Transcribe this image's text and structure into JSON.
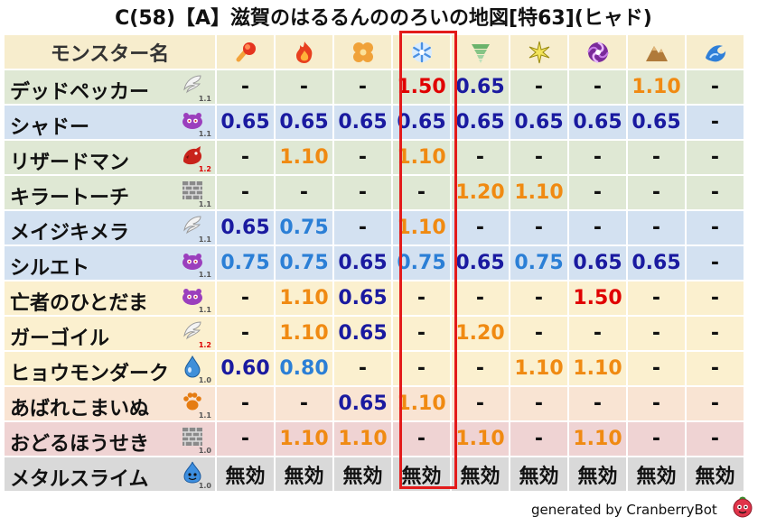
{
  "title": "C(58)【A】滋賀のはるるんののろいの地図[特63](ヒャド)",
  "header": {
    "name_label": "モンスター名",
    "elements": [
      {
        "icon": "fire-ball-icon"
      },
      {
        "icon": "flame-icon"
      },
      {
        "icon": "leaf-clover-icon"
      },
      {
        "icon": "ice-snowflake-icon"
      },
      {
        "icon": "tornado-icon"
      },
      {
        "icon": "lightning-spark-icon"
      },
      {
        "icon": "darkness-swirl-icon"
      },
      {
        "icon": "rock-mountain-icon"
      },
      {
        "icon": "water-wave-icon"
      }
    ]
  },
  "rows": [
    {
      "name": "デッドペッカー",
      "type_icon": "wing-icon",
      "level": "1.1",
      "level_color": "#555555",
      "bg": "green",
      "values": [
        {
          "v": "-",
          "c": "dash"
        },
        {
          "v": "-",
          "c": "dash"
        },
        {
          "v": "-",
          "c": "dash"
        },
        {
          "v": "1.50",
          "c": "red"
        },
        {
          "v": "0.65",
          "c": "blue"
        },
        {
          "v": "-",
          "c": "dash"
        },
        {
          "v": "-",
          "c": "dash"
        },
        {
          "v": "1.10",
          "c": "orange"
        },
        {
          "v": "-",
          "c": "dash"
        }
      ]
    },
    {
      "name": "シャドー",
      "type_icon": "slime-blob-icon",
      "level": "1.1",
      "level_color": "#555555",
      "bg": "blue",
      "values": [
        {
          "v": "0.65",
          "c": "blue"
        },
        {
          "v": "0.65",
          "c": "blue"
        },
        {
          "v": "0.65",
          "c": "blue"
        },
        {
          "v": "0.65",
          "c": "blue"
        },
        {
          "v": "0.65",
          "c": "blue"
        },
        {
          "v": "0.65",
          "c": "blue"
        },
        {
          "v": "0.65",
          "c": "blue"
        },
        {
          "v": "0.65",
          "c": "blue"
        },
        {
          "v": "-",
          "c": "dash"
        }
      ]
    },
    {
      "name": "リザードマン",
      "type_icon": "dragon-icon",
      "level": "1.2",
      "level_color": "#dd0000",
      "bg": "green",
      "values": [
        {
          "v": "-",
          "c": "dash"
        },
        {
          "v": "1.10",
          "c": "orange"
        },
        {
          "v": "-",
          "c": "dash"
        },
        {
          "v": "1.10",
          "c": "orange"
        },
        {
          "v": "-",
          "c": "dash"
        },
        {
          "v": "-",
          "c": "dash"
        },
        {
          "v": "-",
          "c": "dash"
        },
        {
          "v": "-",
          "c": "dash"
        },
        {
          "v": "-",
          "c": "dash"
        }
      ]
    },
    {
      "name": "キラートーチ",
      "type_icon": "brick-wall-icon",
      "level": "1.1",
      "level_color": "#555555",
      "bg": "green",
      "values": [
        {
          "v": "-",
          "c": "dash"
        },
        {
          "v": "-",
          "c": "dash"
        },
        {
          "v": "-",
          "c": "dash"
        },
        {
          "v": "-",
          "c": "dash"
        },
        {
          "v": "1.20",
          "c": "orange"
        },
        {
          "v": "1.10",
          "c": "orange"
        },
        {
          "v": "-",
          "c": "dash"
        },
        {
          "v": "-",
          "c": "dash"
        },
        {
          "v": "-",
          "c": "dash"
        }
      ]
    },
    {
      "name": "メイジキメラ",
      "type_icon": "wing-icon",
      "level": "1.1",
      "level_color": "#555555",
      "bg": "blue",
      "values": [
        {
          "v": "0.65",
          "c": "blue"
        },
        {
          "v": "0.75",
          "c": "lblue"
        },
        {
          "v": "-",
          "c": "dash"
        },
        {
          "v": "1.10",
          "c": "orange"
        },
        {
          "v": "-",
          "c": "dash"
        },
        {
          "v": "-",
          "c": "dash"
        },
        {
          "v": "-",
          "c": "dash"
        },
        {
          "v": "-",
          "c": "dash"
        },
        {
          "v": "-",
          "c": "dash"
        }
      ]
    },
    {
      "name": "シルエト",
      "type_icon": "slime-blob-icon",
      "level": "1.1",
      "level_color": "#555555",
      "bg": "blue",
      "values": [
        {
          "v": "0.75",
          "c": "lblue"
        },
        {
          "v": "0.75",
          "c": "lblue"
        },
        {
          "v": "0.65",
          "c": "blue"
        },
        {
          "v": "0.75",
          "c": "lblue"
        },
        {
          "v": "0.65",
          "c": "blue"
        },
        {
          "v": "0.75",
          "c": "lblue"
        },
        {
          "v": "0.65",
          "c": "blue"
        },
        {
          "v": "0.65",
          "c": "blue"
        },
        {
          "v": "-",
          "c": "dash"
        }
      ]
    },
    {
      "name": "亡者のひとだま",
      "type_icon": "slime-blob-icon",
      "level": "1.1",
      "level_color": "#555555",
      "bg": "yellow",
      "values": [
        {
          "v": "-",
          "c": "dash"
        },
        {
          "v": "1.10",
          "c": "orange"
        },
        {
          "v": "0.65",
          "c": "blue"
        },
        {
          "v": "-",
          "c": "dash"
        },
        {
          "v": "-",
          "c": "dash"
        },
        {
          "v": "-",
          "c": "dash"
        },
        {
          "v": "1.50",
          "c": "red"
        },
        {
          "v": "-",
          "c": "dash"
        },
        {
          "v": "-",
          "c": "dash"
        }
      ]
    },
    {
      "name": "ガーゴイル",
      "type_icon": "wing-icon",
      "level": "1.2",
      "level_color": "#dd0000",
      "bg": "yellow",
      "values": [
        {
          "v": "-",
          "c": "dash"
        },
        {
          "v": "1.10",
          "c": "orange"
        },
        {
          "v": "0.65",
          "c": "blue"
        },
        {
          "v": "-",
          "c": "dash"
        },
        {
          "v": "1.20",
          "c": "orange"
        },
        {
          "v": "-",
          "c": "dash"
        },
        {
          "v": "-",
          "c": "dash"
        },
        {
          "v": "-",
          "c": "dash"
        },
        {
          "v": "-",
          "c": "dash"
        }
      ]
    },
    {
      "name": "ヒョウモンダーク",
      "type_icon": "water-drop-icon",
      "level": "1.0",
      "level_color": "#555555",
      "bg": "yellow",
      "values": [
        {
          "v": "0.60",
          "c": "blue"
        },
        {
          "v": "0.80",
          "c": "lblue"
        },
        {
          "v": "-",
          "c": "dash"
        },
        {
          "v": "-",
          "c": "dash"
        },
        {
          "v": "-",
          "c": "dash"
        },
        {
          "v": "1.10",
          "c": "orange"
        },
        {
          "v": "1.10",
          "c": "orange"
        },
        {
          "v": "-",
          "c": "dash"
        },
        {
          "v": "-",
          "c": "dash"
        }
      ]
    },
    {
      "name": "あばれこまいぬ",
      "type_icon": "paw-icon",
      "level": "1.1",
      "level_color": "#555555",
      "bg": "peach",
      "values": [
        {
          "v": "-",
          "c": "dash"
        },
        {
          "v": "-",
          "c": "dash"
        },
        {
          "v": "0.65",
          "c": "blue"
        },
        {
          "v": "1.10",
          "c": "orange"
        },
        {
          "v": "-",
          "c": "dash"
        },
        {
          "v": "-",
          "c": "dash"
        },
        {
          "v": "-",
          "c": "dash"
        },
        {
          "v": "-",
          "c": "dash"
        },
        {
          "v": "-",
          "c": "dash"
        }
      ]
    },
    {
      "name": "おどるほうせき",
      "type_icon": "brick-wall-icon",
      "level": "1.0",
      "level_color": "#555555",
      "bg": "pink",
      "values": [
        {
          "v": "-",
          "c": "dash"
        },
        {
          "v": "1.10",
          "c": "orange"
        },
        {
          "v": "1.10",
          "c": "orange"
        },
        {
          "v": "-",
          "c": "dash"
        },
        {
          "v": "1.10",
          "c": "orange"
        },
        {
          "v": "-",
          "c": "dash"
        },
        {
          "v": "1.10",
          "c": "orange"
        },
        {
          "v": "-",
          "c": "dash"
        },
        {
          "v": "-",
          "c": "dash"
        }
      ]
    },
    {
      "name": "メタルスライム",
      "type_icon": "slime-icon",
      "level": "1.0",
      "level_color": "#555555",
      "bg": "gray",
      "values": [
        {
          "v": "無効",
          "c": "mu"
        },
        {
          "v": "無効",
          "c": "mu"
        },
        {
          "v": "無効",
          "c": "mu"
        },
        {
          "v": "無効",
          "c": "mu"
        },
        {
          "v": "無効",
          "c": "mu"
        },
        {
          "v": "無効",
          "c": "mu"
        },
        {
          "v": "無効",
          "c": "mu"
        },
        {
          "v": "無効",
          "c": "mu"
        },
        {
          "v": "無効",
          "c": "mu"
        }
      ]
    }
  ],
  "highlight_color": "#e31b1b",
  "footer": {
    "text": "generated by CranberryBot",
    "icon": "cranberry-bot-icon"
  }
}
